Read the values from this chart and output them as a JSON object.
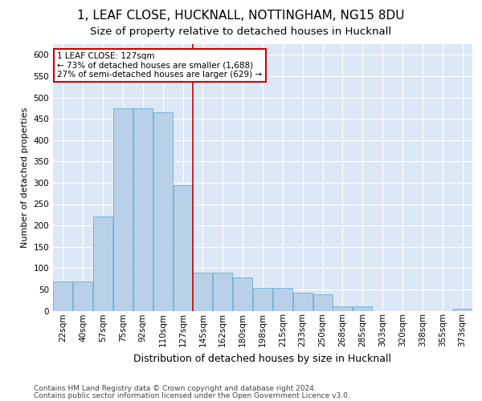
{
  "title1": "1, LEAF CLOSE, HUCKNALL, NOTTINGHAM, NG15 8DU",
  "title2": "Size of property relative to detached houses in Hucknall",
  "xlabel": "Distribution of detached houses by size in Hucknall",
  "ylabel": "Number of detached properties",
  "categories": [
    "22sqm",
    "40sqm",
    "57sqm",
    "75sqm",
    "92sqm",
    "110sqm",
    "127sqm",
    "145sqm",
    "162sqm",
    "180sqm",
    "198sqm",
    "215sqm",
    "233sqm",
    "250sqm",
    "268sqm",
    "285sqm",
    "303sqm",
    "320sqm",
    "338sqm",
    "355sqm",
    "373sqm"
  ],
  "values": [
    68,
    68,
    220,
    475,
    475,
    465,
    295,
    90,
    90,
    78,
    53,
    53,
    42,
    38,
    10,
    10,
    0,
    0,
    0,
    0,
    4
  ],
  "bar_color": "#b8d0e8",
  "bar_edge_color": "#6baed6",
  "vline_x_index": 6,
  "vline_color": "#cc0000",
  "annotation_text": "1 LEAF CLOSE: 127sqm\n← 73% of detached houses are smaller (1,688)\n27% of semi-detached houses are larger (629) →",
  "annotation_box_color": "#ffffff",
  "annotation_box_edge": "#cc0000",
  "ylim": [
    0,
    625
  ],
  "yticks": [
    0,
    50,
    100,
    150,
    200,
    250,
    300,
    350,
    400,
    450,
    500,
    550,
    600
  ],
  "footer1": "Contains HM Land Registry data © Crown copyright and database right 2024.",
  "footer2": "Contains public sector information licensed under the Open Government Licence v3.0.",
  "bg_color": "#dce8f5",
  "title1_fontsize": 11,
  "title2_fontsize": 9.5,
  "xlabel_fontsize": 9,
  "ylabel_fontsize": 8,
  "tick_fontsize": 7.5,
  "footer_fontsize": 6.5
}
